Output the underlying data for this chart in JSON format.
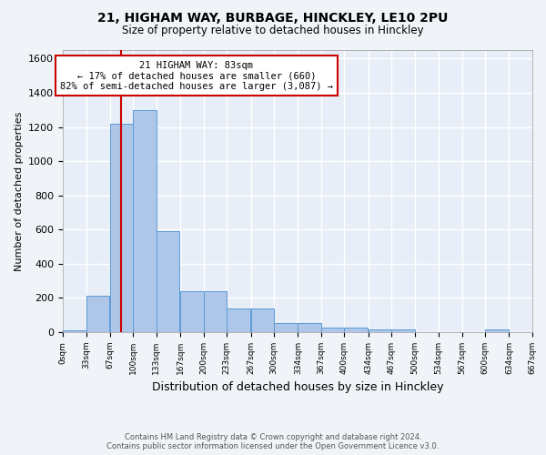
{
  "title1": "21, HIGHAM WAY, BURBAGE, HINCKLEY, LE10 2PU",
  "title2": "Size of property relative to detached houses in Hinckley",
  "xlabel": "Distribution of detached houses by size in Hinckley",
  "ylabel": "Number of detached properties",
  "footer1": "Contains HM Land Registry data © Crown copyright and database right 2024.",
  "footer2": "Contains public sector information licensed under the Open Government Licence v3.0.",
  "bin_edges": [
    0,
    33,
    67,
    100,
    133,
    167,
    200,
    233,
    267,
    300,
    334,
    367,
    400,
    434,
    467,
    500,
    534,
    567,
    600,
    634,
    667
  ],
  "bar_heights": [
    10,
    215,
    1220,
    1300,
    590,
    240,
    240,
    140,
    140,
    55,
    55,
    25,
    25,
    15,
    15,
    0,
    0,
    0,
    15,
    0,
    0
  ],
  "bar_color": "#aec6e8",
  "bar_edgecolor": "#5b9bd5",
  "background_color": "#e8eef7",
  "grid_color": "#ffffff",
  "property_size": 83,
  "red_line_color": "#cc0000",
  "annotation_line1": "21 HIGHAM WAY: 83sqm",
  "annotation_line2": "← 17% of detached houses are smaller (660)",
  "annotation_line3": "82% of semi-detached houses are larger (3,087) →",
  "annotation_box_color": "#cc0000",
  "annotation_fill": "#ffffff",
  "ylim": [
    0,
    1650
  ],
  "xlim": [
    0,
    667
  ],
  "yticks": [
    0,
    200,
    400,
    600,
    800,
    1000,
    1200,
    1400,
    1600
  ],
  "tick_labels": [
    "0sqm",
    "33sqm",
    "67sqm",
    "100sqm",
    "133sqm",
    "167sqm",
    "200sqm",
    "233sqm",
    "267sqm",
    "300sqm",
    "334sqm",
    "367sqm",
    "400sqm",
    "434sqm",
    "467sqm",
    "500sqm",
    "534sqm",
    "567sqm",
    "600sqm",
    "634sqm",
    "667sqm"
  ],
  "tick_positions": [
    0,
    33,
    67,
    100,
    133,
    167,
    200,
    233,
    267,
    300,
    334,
    367,
    400,
    434,
    467,
    500,
    534,
    567,
    600,
    634,
    667
  ],
  "fig_bg": "#f0f4f9"
}
